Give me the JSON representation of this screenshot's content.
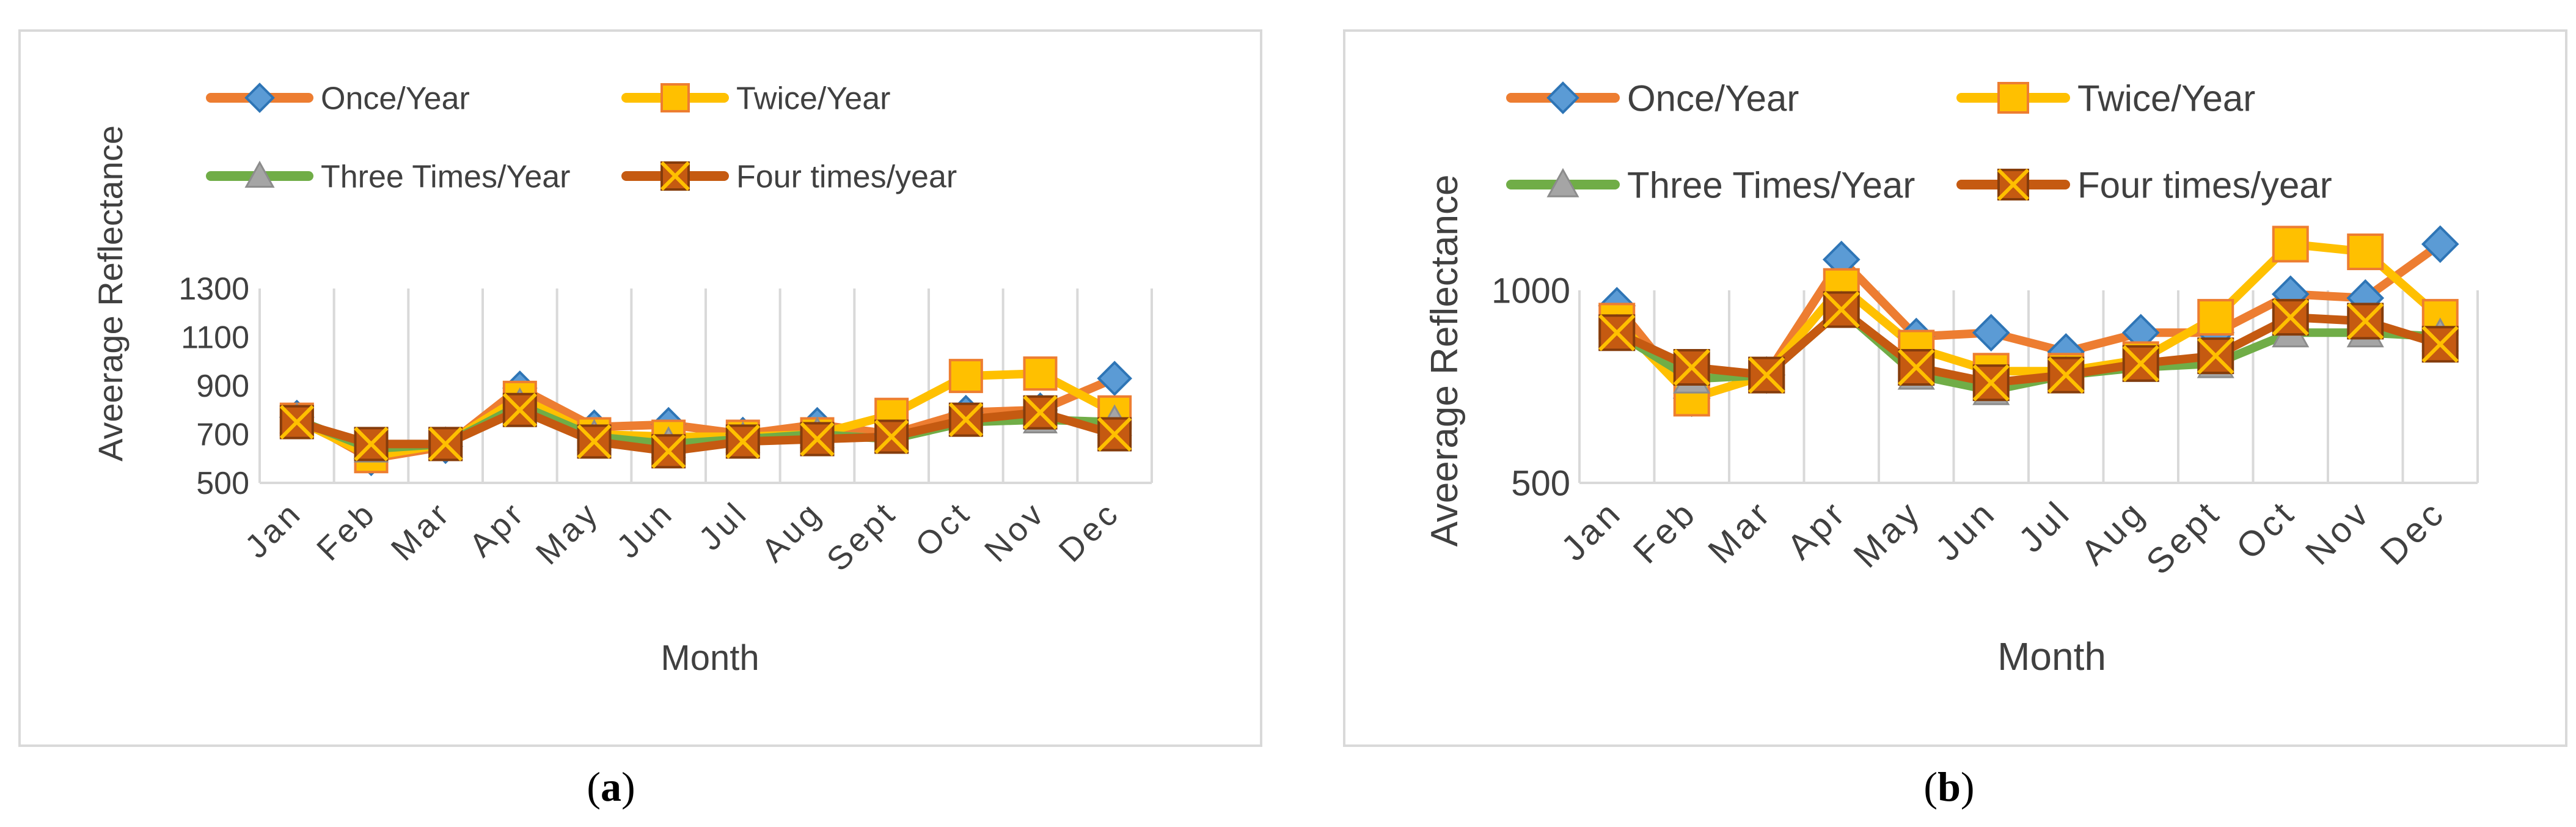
{
  "colors": {
    "once": "#ED7D31",
    "once_marker": "#5B9BD5",
    "twice": "#FFC000",
    "twice_marker": "#FFC000",
    "three": "#70AD47",
    "three_marker": "#A5A5A5",
    "four": "#C55A11",
    "four_marker": "#C55A11"
  },
  "chart_data": [
    {
      "type": "line",
      "panel_label": "a",
      "ylabel": "Aveerage Reflectance",
      "xlabel": "Month",
      "ylim": [
        500,
        1300
      ],
      "yticks": [
        500,
        700,
        900,
        1100,
        1300
      ],
      "categories": [
        "Jan",
        "Feb",
        "Mar",
        "Apr",
        "May",
        "Jun",
        "Jul",
        "Aug",
        "Sept",
        "Oct",
        "Nov",
        "Dec"
      ],
      "series": [
        {
          "key": "once",
          "name": "Once/Year",
          "marker": "diamond",
          "values": [
            770,
            600,
            650,
            890,
            730,
            740,
            700,
            740,
            700,
            790,
            800,
            930
          ]
        },
        {
          "key": "twice",
          "name": "Twice/Year",
          "marker": "square",
          "values": [
            760,
            610,
            660,
            850,
            700,
            690,
            690,
            700,
            780,
            940,
            950,
            790
          ]
        },
        {
          "key": "three",
          "name": "Three Times/Year",
          "marker": "triangle",
          "values": [
            760,
            640,
            660,
            820,
            690,
            660,
            680,
            700,
            680,
            750,
            760,
            750
          ]
        },
        {
          "key": "four",
          "name": "Four times/year",
          "marker": "xsquare",
          "values": [
            750,
            660,
            660,
            800,
            670,
            630,
            670,
            680,
            690,
            760,
            790,
            700
          ]
        }
      ]
    },
    {
      "type": "line",
      "panel_label": "b",
      "ylabel": "Aveerage Reflectance",
      "xlabel": "Month",
      "ylim": [
        500,
        1000
      ],
      "yticks": [
        500,
        1000
      ],
      "categories": [
        "Jan",
        "Feb",
        "Mar",
        "Apr",
        "May",
        "Jun",
        "Jul",
        "Aug",
        "Sept",
        "Oct",
        "Nov",
        "Dec"
      ],
      "series": [
        {
          "key": "once",
          "name": "Once/Year",
          "marker": "diamond",
          "values": [
            960,
            720,
            780,
            1080,
            880,
            890,
            840,
            890,
            890,
            990,
            980,
            1120
          ]
        },
        {
          "key": "twice",
          "name": "Twice/Year",
          "marker": "square",
          "values": [
            920,
            720,
            780,
            1010,
            850,
            790,
            790,
            820,
            930,
            1120,
            1100,
            930
          ]
        },
        {
          "key": "three",
          "name": "Three Times/Year",
          "marker": "triangle",
          "values": [
            890,
            770,
            780,
            950,
            780,
            740,
            780,
            800,
            810,
            890,
            890,
            880
          ]
        },
        {
          "key": "four",
          "name": "Four times/year",
          "marker": "xsquare",
          "values": [
            890,
            800,
            780,
            950,
            800,
            760,
            780,
            810,
            830,
            930,
            920,
            860
          ]
        }
      ]
    }
  ]
}
